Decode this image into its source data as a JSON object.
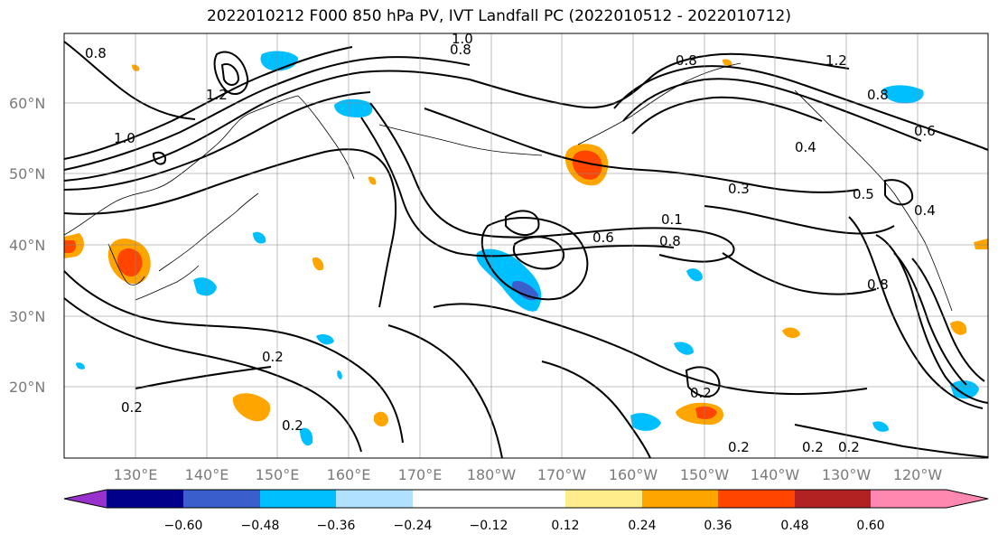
{
  "title": "2022010212 F000 850 hPa PV, IVT Landfall PC (2022010512 - 2022010712)",
  "lat_labels": [
    "60°N",
    "50°N",
    "40°N",
    "30°N",
    "20°N"
  ],
  "lon_labels": [
    "130°E",
    "140°E",
    "150°E",
    "160°E",
    "170°E",
    "180°W",
    "170°W",
    "160°W",
    "150°W",
    "140°W",
    "130°W",
    "120°W"
  ],
  "colorbar": {
    "tick_labels": [
      "−0.60",
      "−0.48",
      "−0.36",
      "−0.24",
      "−0.12",
      "0.12",
      "0.24",
      "0.36",
      "0.48",
      "0.60"
    ],
    "colors": [
      "#9932cc",
      "#00008b",
      "#3a5fcd",
      "#00bfff",
      "#b0e2ff",
      "#ffffff",
      "#ffec8b",
      "#ffa500",
      "#ff4500",
      "#b22222",
      "#ff88b0"
    ]
  },
  "contour_labels": [
    {
      "text": "0.8"
    },
    {
      "text": "1.0"
    },
    {
      "text": "0.8"
    },
    {
      "text": "1.2"
    },
    {
      "text": "1.2"
    },
    {
      "text": "1.0"
    },
    {
      "text": "0.8"
    },
    {
      "text": "0.4"
    },
    {
      "text": "0.3"
    },
    {
      "text": "0.6"
    },
    {
      "text": "0.5"
    },
    {
      "text": "0.4"
    },
    {
      "text": "0.8"
    },
    {
      "text": "0.1"
    },
    {
      "text": "0.8"
    },
    {
      "text": "0.6"
    },
    {
      "text": "0.2"
    },
    {
      "text": "0.2"
    },
    {
      "text": "0.2"
    },
    {
      "text": "0.2"
    },
    {
      "text": "0.2"
    },
    {
      "text": "0.2"
    },
    {
      "text": "0.8"
    },
    {
      "text": "0.2"
    }
  ]
}
